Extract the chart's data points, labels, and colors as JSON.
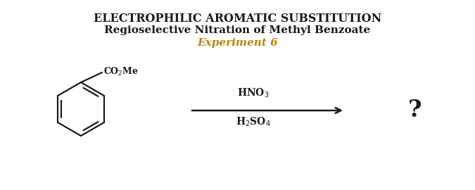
{
  "title1": "ELECTROPHILIC AROMATIC SUBSTITUTION",
  "title2": "Regioselective Nitration of Methyl Benzoate",
  "title3": "Experiment 6",
  "title1_fontsize": 11.5,
  "title2_fontsize": 11,
  "title3_fontsize": 11,
  "title3_color": "#b8860b",
  "reagent1": "HNO$_3$",
  "reagent2": "H$_2$SO$_4$",
  "question": "?",
  "bg_color": "#ffffff",
  "text_color": "#1a1a1a",
  "arrow_color": "#1a1a1a",
  "co2me_label": "CO$_2$Me"
}
